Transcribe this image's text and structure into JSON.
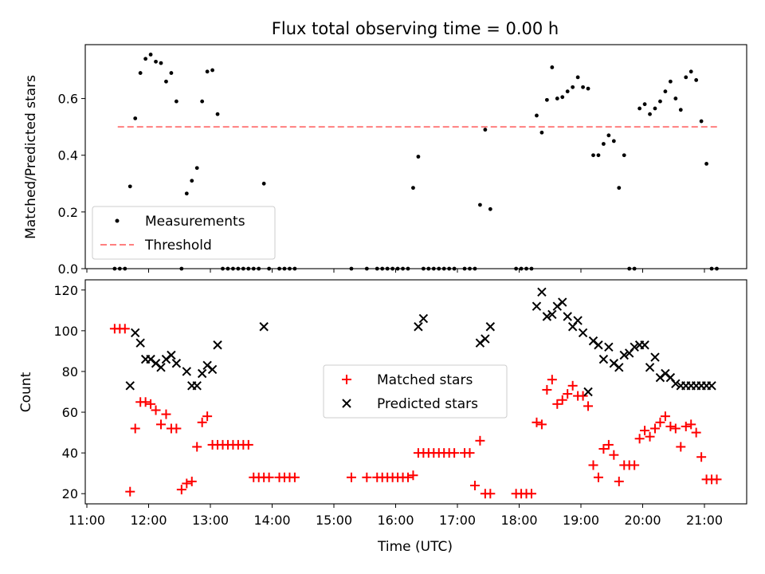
{
  "chart_data": [
    {
      "type": "scatter",
      "title": "Flux total observing time = 0.00 h",
      "xlabel": "",
      "ylabel": "Matched/Predicted stars",
      "xlim": [
        "11:00",
        "21:40"
      ],
      "ylim": [
        0,
        0.79
      ],
      "yticks": [
        0.0,
        0.2,
        0.4,
        0.6
      ],
      "ytick_labels": [
        "0.0",
        "0.2",
        "0.4",
        "0.6"
      ],
      "legend": {
        "position": "lower-left",
        "entries": [
          "Measurements",
          "Threshold"
        ]
      },
      "threshold": {
        "name": "Threshold",
        "value": 0.5,
        "x_start": "11:30",
        "x_end": "21:15",
        "color": "#ff7f7f",
        "style": "dashed"
      },
      "series": [
        {
          "name": "Measurements",
          "color": "#000000",
          "marker": "dot",
          "x": [
            "11:27",
            "11:32",
            "11:37",
            "11:42",
            "11:47",
            "11:52",
            "11:57",
            "12:02",
            "12:07",
            "12:12",
            "12:17",
            "12:22",
            "12:27",
            "12:32",
            "12:37",
            "12:42",
            "12:47",
            "12:52",
            "12:57",
            "13:02",
            "13:07",
            "13:12",
            "13:17",
            "13:22",
            "13:27",
            "13:32",
            "13:37",
            "13:42",
            "13:47",
            "13:52",
            "13:57",
            "14:07",
            "14:12",
            "14:17",
            "14:22",
            "15:17",
            "15:32",
            "15:42",
            "15:47",
            "15:52",
            "15:57",
            "16:02",
            "16:07",
            "16:12",
            "16:17",
            "16:22",
            "16:27",
            "16:32",
            "16:37",
            "16:42",
            "16:47",
            "16:52",
            "16:57",
            "17:07",
            "17:12",
            "17:17",
            "17:22",
            "17:27",
            "17:32",
            "17:57",
            "18:02",
            "18:07",
            "18:12",
            "18:17",
            "18:22",
            "18:27",
            "18:32",
            "18:37",
            "18:42",
            "18:47",
            "18:52",
            "18:57",
            "19:02",
            "19:07",
            "19:12",
            "19:17",
            "19:22",
            "19:27",
            "19:32",
            "19:37",
            "19:42",
            "19:47",
            "19:52",
            "19:57",
            "20:02",
            "20:07",
            "20:12",
            "20:17",
            "20:22",
            "20:27",
            "20:32",
            "20:37",
            "20:42",
            "20:47",
            "20:52",
            "20:57",
            "21:02",
            "21:07",
            "21:12"
          ],
          "y": [
            0.0,
            0.0,
            0.0,
            0.29,
            0.53,
            0.69,
            0.74,
            0.755,
            0.73,
            0.725,
            0.66,
            0.69,
            0.59,
            0.0,
            0.265,
            0.31,
            0.355,
            0.59,
            0.695,
            0.7,
            0.545,
            0.0,
            0.0,
            0.0,
            0.0,
            0.0,
            0.0,
            0.0,
            0.0,
            0.3,
            0.0,
            0.0,
            0.0,
            0.0,
            0.0,
            0.0,
            0.0,
            0.0,
            0.0,
            0.0,
            0.0,
            0.0,
            0.0,
            0.0,
            0.285,
            0.395,
            0.0,
            0.0,
            0.0,
            0.0,
            0.0,
            0.0,
            0.0,
            0.0,
            0.0,
            0.0,
            0.225,
            0.49,
            0.21,
            0.0,
            0.0,
            0.0,
            0.0,
            0.54,
            0.48,
            0.595,
            0.71,
            0.6,
            0.605,
            0.625,
            0.64,
            0.675,
            0.64,
            0.635,
            0.4,
            0.4,
            0.44,
            0.47,
            0.45,
            0.285,
            0.4,
            0.0,
            0.0,
            0.565,
            0.58,
            0.545,
            0.565,
            0.59,
            0.625,
            0.66,
            0.6,
            0.56,
            0.675,
            0.695,
            0.665,
            0.52,
            0.37,
            0.0,
            0.0
          ]
        }
      ]
    },
    {
      "type": "scatter",
      "title": "",
      "xlabel": "Time (UTC)",
      "ylabel": "Count",
      "xlim": [
        "11:00",
        "21:40"
      ],
      "ylim": [
        15,
        125
      ],
      "xticks": [
        "11:00",
        "12:00",
        "13:00",
        "14:00",
        "15:00",
        "16:00",
        "17:00",
        "18:00",
        "19:00",
        "20:00",
        "21:00"
      ],
      "yticks": [
        20,
        40,
        60,
        80,
        100,
        120
      ],
      "ytick_labels": [
        "20",
        "40",
        "60",
        "80",
        "100",
        "120"
      ],
      "legend": {
        "position": "center",
        "entries": [
          "Matched stars",
          "Predicted stars"
        ]
      },
      "series": [
        {
          "name": "Matched stars",
          "color": "#ff0000",
          "marker": "plus",
          "x": [
            "11:27",
            "11:32",
            "11:37",
            "11:42",
            "11:47",
            "11:52",
            "11:57",
            "12:02",
            "12:07",
            "12:12",
            "12:17",
            "12:22",
            "12:27",
            "12:32",
            "12:37",
            "12:42",
            "12:47",
            "12:52",
            "12:57",
            "13:02",
            "13:07",
            "13:12",
            "13:17",
            "13:22",
            "13:27",
            "13:32",
            "13:37",
            "13:42",
            "13:47",
            "13:52",
            "13:57",
            "14:07",
            "14:12",
            "14:17",
            "14:22",
            "15:17",
            "15:32",
            "15:42",
            "15:47",
            "15:52",
            "15:57",
            "16:02",
            "16:07",
            "16:12",
            "16:17",
            "16:22",
            "16:27",
            "16:32",
            "16:37",
            "16:42",
            "16:47",
            "16:52",
            "16:57",
            "17:07",
            "17:12",
            "17:17",
            "17:22",
            "17:27",
            "17:32",
            "17:57",
            "18:02",
            "18:07",
            "18:12",
            "18:17",
            "18:22",
            "18:27",
            "18:32",
            "18:37",
            "18:42",
            "18:47",
            "18:52",
            "18:57",
            "19:02",
            "19:07",
            "19:12",
            "19:17",
            "19:22",
            "19:27",
            "19:32",
            "19:37",
            "19:42",
            "19:47",
            "19:52",
            "19:57",
            "20:02",
            "20:07",
            "20:12",
            "20:17",
            "20:22",
            "20:27",
            "20:32",
            "20:37",
            "20:42",
            "20:47",
            "20:52",
            "20:57",
            "21:02",
            "21:07",
            "21:12"
          ],
          "y": [
            101,
            101,
            101,
            21,
            52,
            65,
            65,
            64,
            61,
            54,
            59,
            52,
            52,
            22,
            25,
            26,
            43,
            55,
            58,
            44,
            44,
            44,
            44,
            44,
            44,
            44,
            44,
            28,
            28,
            28,
            28,
            28,
            28,
            28,
            28,
            28,
            28,
            28,
            28,
            28,
            28,
            28,
            28,
            28,
            29,
            40,
            40,
            40,
            40,
            40,
            40,
            40,
            40,
            40,
            40,
            24,
            46,
            20,
            20,
            20,
            20,
            20,
            20,
            55,
            54,
            71,
            76,
            64,
            66,
            69,
            73,
            68,
            68,
            63,
            34,
            28,
            42,
            44,
            39,
            26,
            34,
            34,
            34,
            47,
            51,
            48,
            52,
            55,
            58,
            53,
            52,
            43,
            53,
            54,
            50,
            38,
            27,
            27,
            27
          ]
        },
        {
          "name": "Predicted stars",
          "color": "#000000",
          "marker": "x",
          "x": [
            "11:42",
            "11:47",
            "11:52",
            "11:57",
            "12:02",
            "12:07",
            "12:12",
            "12:17",
            "12:22",
            "12:27",
            "12:37",
            "12:42",
            "12:47",
            "12:52",
            "12:57",
            "13:02",
            "13:07",
            "13:52",
            "16:22",
            "16:27",
            "17:22",
            "17:27",
            "17:32",
            "18:17",
            "18:22",
            "18:27",
            "18:32",
            "18:37",
            "18:42",
            "18:47",
            "18:52",
            "18:57",
            "19:02",
            "19:07",
            "19:12",
            "19:17",
            "19:22",
            "19:27",
            "19:32",
            "19:37",
            "19:42",
            "19:47",
            "19:52",
            "19:57",
            "20:02",
            "20:07",
            "20:12",
            "20:17",
            "20:22",
            "20:27",
            "20:32",
            "20:37",
            "20:42",
            "20:47",
            "20:52",
            "20:57",
            "21:02",
            "21:07"
          ],
          "y": [
            73,
            99,
            94,
            86,
            86,
            84,
            82,
            86,
            88,
            84,
            80,
            73,
            73,
            79,
            83,
            81,
            93,
            102,
            102,
            106,
            94,
            96,
            102,
            112,
            119,
            107,
            108,
            112,
            114,
            107,
            102,
            105,
            99,
            70,
            95,
            93,
            86,
            92,
            84,
            82,
            88,
            89,
            92,
            93,
            93,
            82,
            87,
            77,
            79,
            77,
            74,
            73,
            73,
            73,
            73,
            73,
            73,
            73
          ]
        }
      ]
    }
  ]
}
